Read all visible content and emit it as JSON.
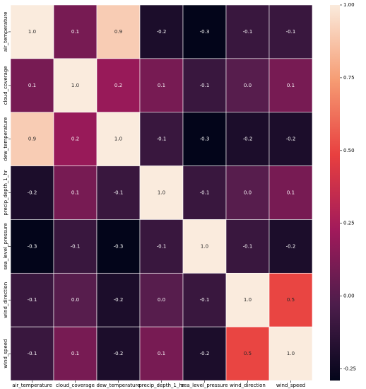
{
  "chart_data": {
    "type": "heatmap",
    "x_categories": [
      "air_temperature",
      "cloud_coverage",
      "dew_temperature",
      "precip_depth_1_hr",
      "sea_level_pressure",
      "wind_direction",
      "wind_speed"
    ],
    "y_categories": [
      "air_temperature",
      "cloud_coverage",
      "dew_temperature",
      "precip_depth_1_hr",
      "sea_level_pressure",
      "wind_direction",
      "wind_speed"
    ],
    "values": [
      [
        1.0,
        0.1,
        0.9,
        -0.2,
        -0.3,
        -0.1,
        -0.1
      ],
      [
        0.1,
        1.0,
        0.2,
        0.1,
        -0.1,
        0.0,
        0.1
      ],
      [
        0.9,
        0.2,
        1.0,
        -0.1,
        -0.3,
        -0.2,
        -0.2
      ],
      [
        -0.2,
        0.1,
        -0.1,
        1.0,
        -0.1,
        0.0,
        0.1
      ],
      [
        -0.3,
        -0.1,
        -0.3,
        -0.1,
        1.0,
        -0.1,
        -0.2
      ],
      [
        -0.1,
        0.0,
        -0.2,
        0.0,
        -0.1,
        1.0,
        0.5
      ],
      [
        -0.1,
        0.1,
        -0.2,
        0.1,
        -0.2,
        0.5,
        1.0
      ]
    ],
    "value_labels": [
      [
        "1.0",
        "0.1",
        "0.9",
        "-0.2",
        "-0.3",
        "-0.1",
        "-0.1"
      ],
      [
        "0.1",
        "1.0",
        "0.2",
        "0.1",
        "-0.1",
        "0.0",
        "0.1"
      ],
      [
        "0.9",
        "0.2",
        "1.0",
        "-0.1",
        "-0.3",
        "-0.2",
        "-0.2"
      ],
      [
        "-0.2",
        "0.1",
        "-0.1",
        "1.0",
        "-0.1",
        "0.0",
        "0.1"
      ],
      [
        "-0.3",
        "-0.1",
        "-0.3",
        "-0.1",
        "1.0",
        "-0.1",
        "-0.2"
      ],
      [
        "-0.1",
        "0.0",
        "-0.2",
        "0.0",
        "-0.1",
        "1.0",
        "0.5"
      ],
      [
        "-0.1",
        "0.1",
        "-0.2",
        "0.1",
        "-0.2",
        "0.5",
        "1.0"
      ]
    ],
    "zlim": [
      -0.29,
      1.0
    ],
    "zticks": [
      {
        "value": 1.0,
        "label": "1.00"
      },
      {
        "value": 0.75,
        "label": "0.75"
      },
      {
        "value": 0.5,
        "label": "0.50"
      },
      {
        "value": 0.25,
        "label": "0.25"
      },
      {
        "value": 0.0,
        "label": "0.00"
      },
      {
        "value": -0.25,
        "label": "-0.25"
      }
    ],
    "colorscale": [
      "#03051a",
      "#4c1d4b",
      "#a11a5b",
      "#e83f3f",
      "#f69c73",
      "#faebdd"
    ]
  }
}
